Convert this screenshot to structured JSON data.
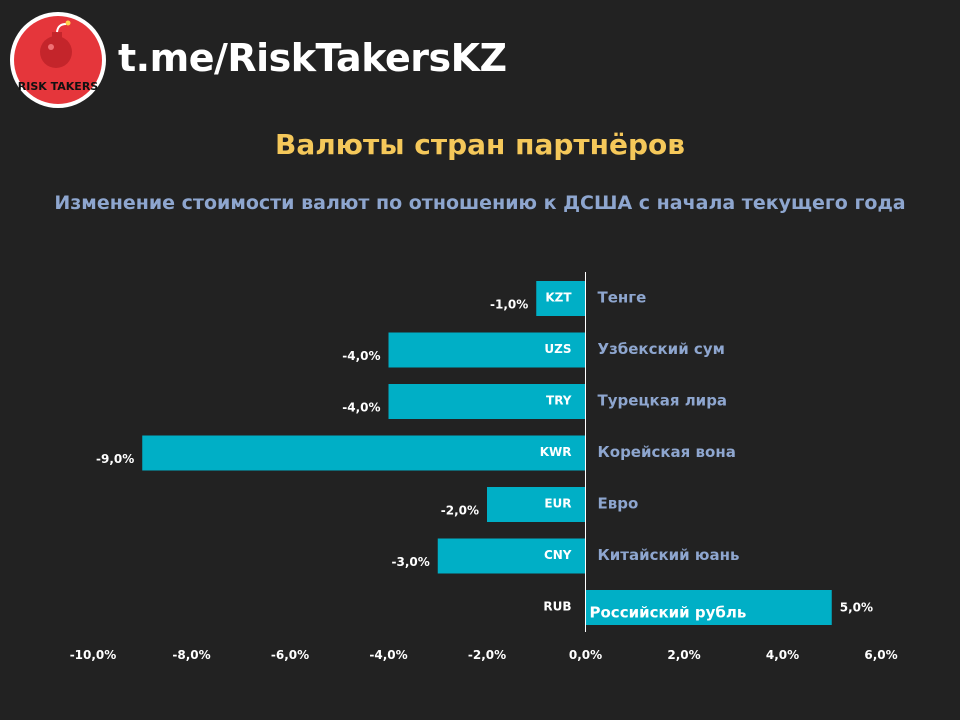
{
  "brand": {
    "handle": "t.me/RiskTakersKZ",
    "logo_text": "RISK TAKERS",
    "logo_icon": "bomb-icon"
  },
  "colors": {
    "background": "#222222",
    "bar": "#00afc6",
    "title": "#f5c85a",
    "label": "#8ea6cf"
  },
  "chart_data": {
    "type": "bar",
    "orientation": "horizontal",
    "title": "Валюты стран партнёров",
    "subtitle": "Изменение стоимости валют по отношению к ДСША с начала текущего года",
    "xlim": [
      -10,
      6
    ],
    "xticks": [
      "-10,0%",
      "-8,0%",
      "-6,0%",
      "-4,0%",
      "-2,0%",
      "0,0%",
      "2,0%",
      "4,0%",
      "6,0%"
    ],
    "tick_values": [
      -10,
      -8,
      -6,
      -4,
      -2,
      0,
      2,
      4,
      6
    ],
    "grid": false,
    "categories": [
      "KZT",
      "UZS",
      "TRY",
      "KWR",
      "EUR",
      "CNY",
      "RUB"
    ],
    "names": [
      "Тенге",
      "Узбекский сум",
      "Турецкая лира",
      "Корейская вона",
      "Евро",
      "Китайский юань",
      "Российский рубль"
    ],
    "values": [
      -1.0,
      -4.0,
      -4.0,
      -9.0,
      -2.0,
      -3.0,
      5.0
    ],
    "value_labels": [
      "-1,0%",
      "-4,0%",
      "-4,0%",
      "-9,0%",
      "-2,0%",
      "-3,0%",
      "5,0%"
    ]
  }
}
